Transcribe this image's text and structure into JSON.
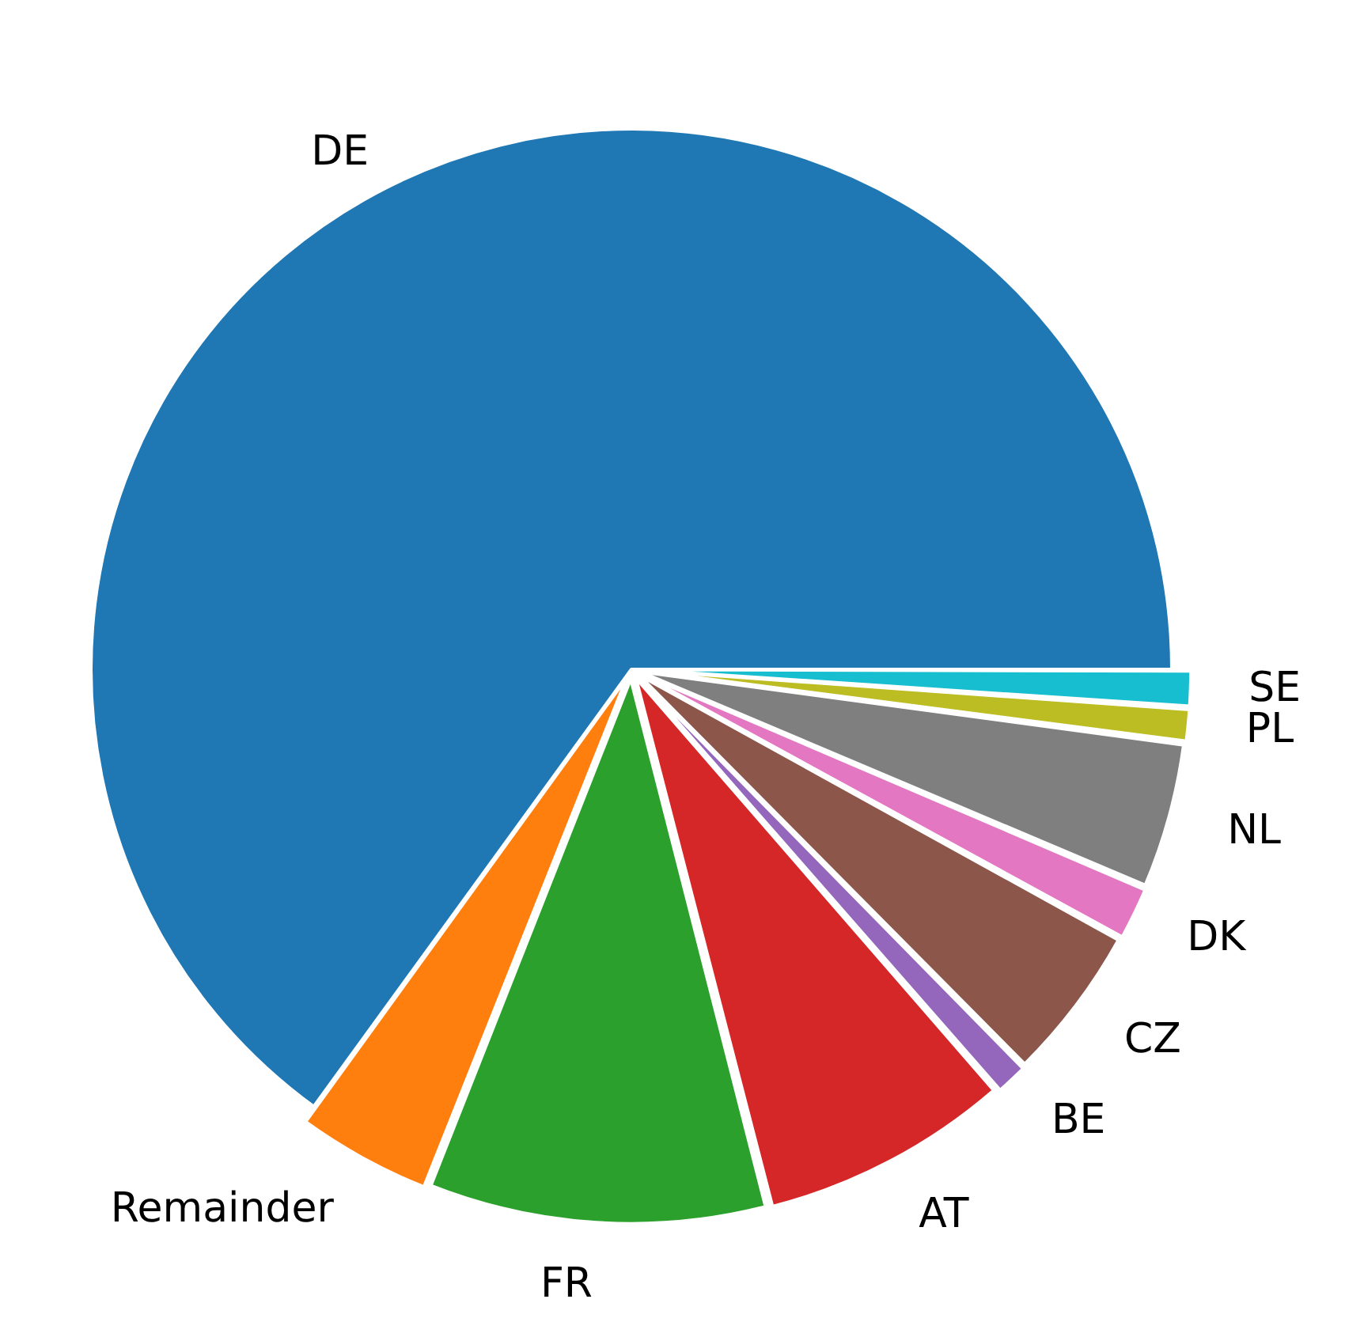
{
  "chart_data": {
    "type": "pie",
    "categories": [
      "DE",
      "Remainder",
      "FR",
      "AT",
      "BE",
      "CZ",
      "DK",
      "NL",
      "PL",
      "SE"
    ],
    "values": [
      65.0,
      4.0,
      10.0,
      7.4,
      1.0,
      4.6,
      1.6,
      4.3,
      1.0,
      1.1
    ],
    "colors": [
      "#1f77b4",
      "#ff7f0e",
      "#2ca02c",
      "#d62728",
      "#9467bd",
      "#8c564b",
      "#e377c2",
      "#7f7f7f",
      "#bcbd22",
      "#17becf"
    ]
  }
}
